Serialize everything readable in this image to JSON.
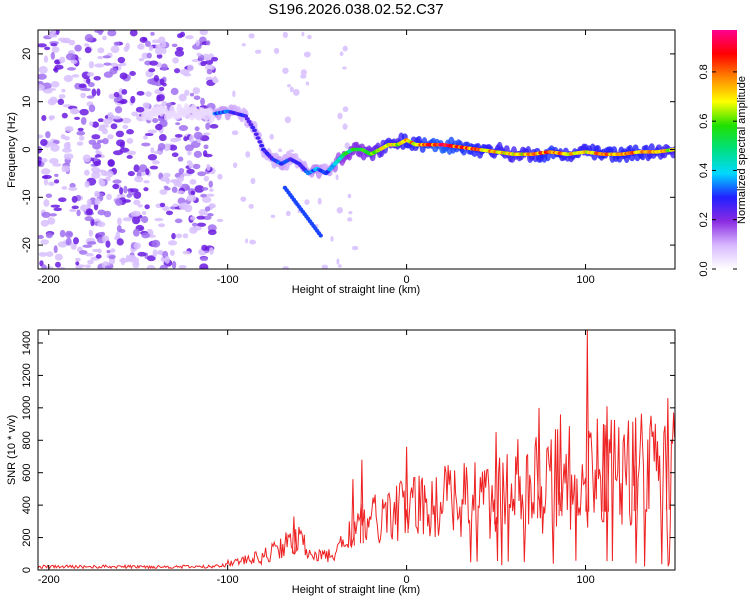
{
  "title": "S196.2026.038.02.52.C37",
  "chart_data": [
    {
      "type": "heatmap",
      "name": "spectrogram",
      "xlabel": "Height of straight line (km)",
      "ylabel": "Frequency (Hz)",
      "xlim": [
        -206,
        150
      ],
      "ylim": [
        -25,
        25
      ],
      "xticks": [
        -200,
        -100,
        0,
        100
      ],
      "yticks": [
        -20,
        -10,
        0,
        10,
        20
      ],
      "colorbar": {
        "label": "Normalized spectral amplitude",
        "range": [
          0.0,
          0.97
        ],
        "ticks": [
          0.0,
          0.2,
          0.4,
          0.6,
          0.8
        ],
        "tick_labels": [
          "0.0",
          "0.2",
          "0.4",
          "0.6",
          "0.8"
        ],
        "colors": [
          "#ffffff",
          "#d8b8ff",
          "#8a2be2",
          "#2020ff",
          "#00d8ff",
          "#00e080",
          "#20e000",
          "#ffff00",
          "#ff8800",
          "#ff0000",
          "#ff0090"
        ]
      },
      "ridge": {
        "description": "dominant frequency track",
        "x": [
          -107,
          -100,
          -95,
          -90,
          -85,
          -80,
          -75,
          -70,
          -65,
          -60,
          -55,
          -50,
          -45,
          -40,
          -35,
          -30,
          -25,
          -20,
          -15,
          -10,
          -5,
          0,
          5,
          10,
          20,
          30,
          40,
          50,
          60,
          70,
          80,
          90,
          100,
          110,
          120,
          130,
          140,
          150
        ],
        "freq": [
          7.5,
          8,
          7.5,
          7,
          4,
          0,
          -2,
          -3,
          -2,
          -3,
          -5,
          -4,
          -5,
          -3,
          -1,
          0,
          0,
          -1,
          0,
          1,
          1,
          2,
          1,
          1,
          1,
          0.5,
          0,
          -0.5,
          -1,
          -1,
          -0.5,
          -1,
          -0.5,
          -1,
          -1,
          -0.5,
          -0.5,
          0
        ],
        "amp": [
          0.35,
          0.35,
          0.3,
          0.3,
          0.3,
          0.3,
          0.3,
          0.35,
          0.3,
          0.3,
          0.35,
          0.4,
          0.3,
          0.45,
          0.55,
          0.6,
          0.6,
          0.65,
          0.7,
          0.8,
          0.75,
          0.85,
          0.8,
          0.9,
          0.95,
          0.9,
          0.85,
          0.8,
          0.75,
          0.8,
          0.9,
          0.8,
          0.8,
          0.85,
          0.85,
          0.85,
          0.8,
          0.75
        ]
      },
      "noise_region": [
        -206,
        -107
      ]
    },
    {
      "type": "line",
      "name": "snr",
      "xlabel": "Height of straight line (km)",
      "ylabel": "SNR (10 * v/v)",
      "xlim": [
        -206,
        150
      ],
      "ylim": [
        0,
        1480
      ],
      "xticks": [
        -200,
        -100,
        0,
        100
      ],
      "yticks": [
        0,
        200,
        400,
        600,
        800,
        1000,
        1200,
        1400
      ],
      "color": "#ee2222",
      "envelope": {
        "x": [
          -206,
          -150,
          -110,
          -100,
          -90,
          -80,
          -70,
          -60,
          -50,
          -40,
          -30,
          -20,
          -10,
          0,
          10,
          20,
          30,
          40,
          50,
          60,
          70,
          80,
          90,
          100,
          110,
          120,
          130,
          140,
          150
        ],
        "level": [
          20,
          20,
          20,
          40,
          60,
          80,
          150,
          180,
          80,
          100,
          250,
          300,
          350,
          380,
          400,
          420,
          440,
          450,
          470,
          500,
          520,
          550,
          560,
          600,
          600,
          600,
          610,
          620,
          620
        ],
        "spread": [
          10,
          10,
          10,
          20,
          30,
          50,
          80,
          90,
          40,
          60,
          120,
          150,
          180,
          200,
          220,
          230,
          250,
          260,
          280,
          300,
          320,
          330,
          340,
          360,
          360,
          360,
          370,
          380,
          380
        ]
      },
      "peaks": [
        {
          "x": -63,
          "y": 330
        },
        {
          "x": -30,
          "y": 560
        },
        {
          "x": -25,
          "y": 680
        },
        {
          "x": 0,
          "y": 760
        },
        {
          "x": 50,
          "y": 850
        },
        {
          "x": 74,
          "y": 1000
        },
        {
          "x": 86,
          "y": 960
        },
        {
          "x": 101,
          "y": 1480
        },
        {
          "x": 110,
          "y": 900
        },
        {
          "x": 112,
          "y": 1010
        },
        {
          "x": 128,
          "y": 940
        },
        {
          "x": 146,
          "y": 1060
        }
      ]
    }
  ]
}
